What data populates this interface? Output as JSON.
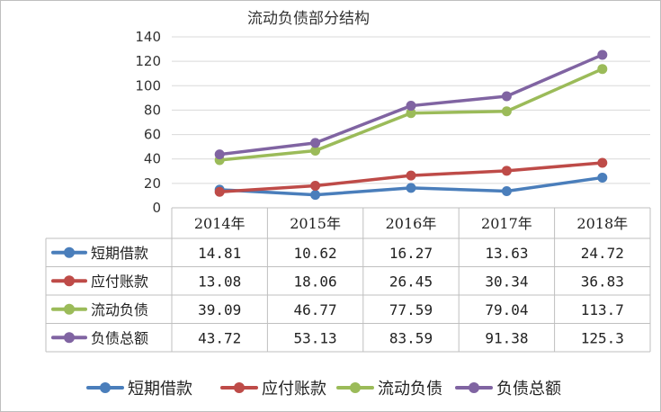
{
  "chart_data": {
    "type": "line",
    "title": "流动负债部分结构",
    "categories": [
      "2014年",
      "2015年",
      "2016年",
      "2017年",
      "2018年"
    ],
    "ylim": [
      0,
      140
    ],
    "yticks": [
      "0",
      "20",
      "40",
      "60",
      "80",
      "100",
      "120",
      "140"
    ],
    "grid": true,
    "legend_position": "bottom",
    "series": [
      {
        "name": "短期借款",
        "color": "#4a7ebb",
        "values": [
          14.81,
          10.62,
          16.27,
          13.63,
          24.72
        ],
        "labels": [
          "14.81",
          "10.62",
          "16.27",
          "13.63",
          "24.72"
        ]
      },
      {
        "name": "应付账款",
        "color": "#be4b48",
        "values": [
          13.08,
          18.06,
          26.45,
          30.34,
          36.83
        ],
        "labels": [
          "13.08",
          "18.06",
          "26.45",
          "30.34",
          "36.83"
        ]
      },
      {
        "name": "流动负债",
        "color": "#9bbb59",
        "values": [
          39.09,
          46.77,
          77.59,
          79.04,
          113.7
        ],
        "labels": [
          "39.09",
          "46.77",
          "77.59",
          "79.04",
          "113.7"
        ]
      },
      {
        "name": "负债总额",
        "color": "#8064a2",
        "values": [
          43.72,
          53.13,
          83.59,
          91.38,
          125.3
        ],
        "labels": [
          "43.72",
          "53.13",
          "83.59",
          "91.38",
          "125.3"
        ]
      }
    ]
  }
}
